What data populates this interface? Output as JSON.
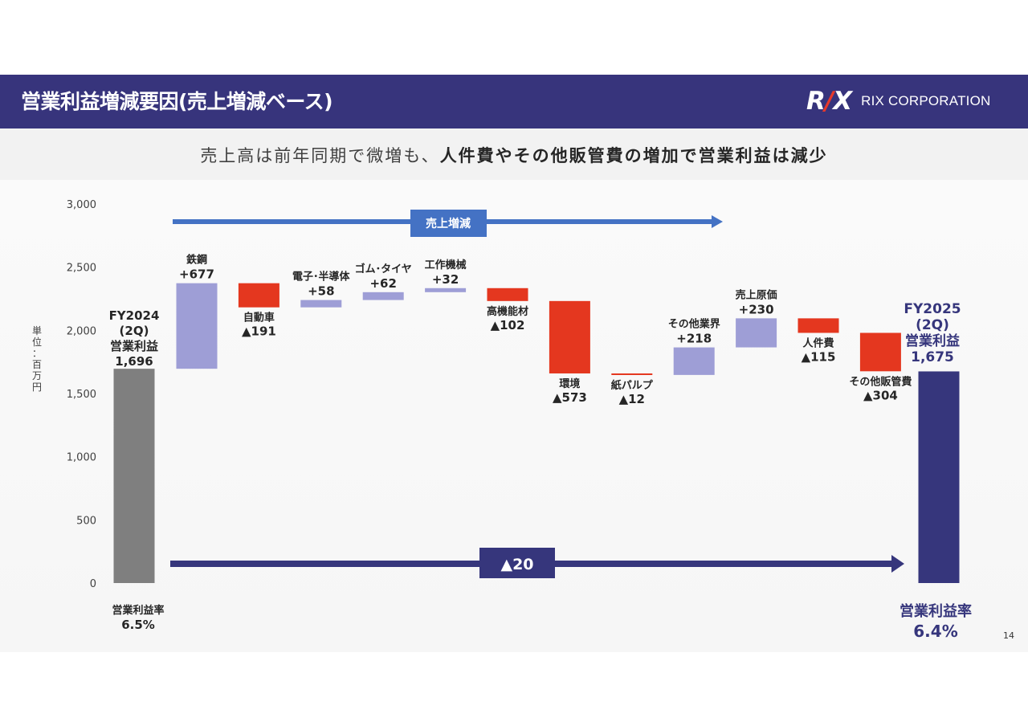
{
  "header": {
    "title": "営業利益増減要因(売上増減ベース)",
    "logo_mark": "RIX",
    "logo_text": "RIX CORPORATION"
  },
  "subtitle": {
    "normal": "売上高は前年同期で微増も、",
    "bold": "人件費やその他販管費の増加で営業利益は減少"
  },
  "unit_label": "単位：百万円",
  "page_number": "14",
  "colors": {
    "increase": "#9e9ed6",
    "decrease": "#e4371f",
    "start": "#7f7f7f",
    "end": "#36367c",
    "header": "#37347c",
    "sales_arrow": "#4472c4"
  },
  "chart_data": {
    "type": "waterfall",
    "ylim": [
      0,
      3000
    ],
    "yticks": [
      "0",
      "500",
      "1,000",
      "1,500",
      "2,000",
      "2,500",
      "3,000"
    ],
    "ytick_values": [
      0,
      500,
      1000,
      1500,
      2000,
      2500,
      3000
    ],
    "start": {
      "lines": [
        "FY2024",
        "(2Q)",
        "営業利益",
        "1,696"
      ],
      "value": 1696,
      "margin_label": "営業利益率",
      "margin_value": "6.5%"
    },
    "end": {
      "lines": [
        "FY2025",
        "(2Q)",
        "営業利益",
        "1,675"
      ],
      "value": 1675,
      "margin_label": "営業利益率",
      "margin_value": "6.4%"
    },
    "steps": [
      {
        "name": "鉄鋼",
        "label": "+677",
        "delta": 677
      },
      {
        "name": "自動車",
        "label": "▲191",
        "delta": -191
      },
      {
        "name": "電子･半導体",
        "label": "+58",
        "delta": 58
      },
      {
        "name": "ゴム･タイヤ",
        "label": "+62",
        "delta": 62
      },
      {
        "name": "工作機械",
        "label": "+32",
        "delta": 32
      },
      {
        "name": "高機能材",
        "label": "▲102",
        "delta": -102
      },
      {
        "name": "環境",
        "label": "▲573",
        "delta": -573
      },
      {
        "name": "紙パルプ",
        "label": "▲12",
        "delta": -12
      },
      {
        "name": "その他業界",
        "label": "+218",
        "delta": 218
      },
      {
        "name": "売上原価",
        "label": "+230",
        "delta": 230
      },
      {
        "name": "人件費",
        "label": "▲115",
        "delta": -115
      },
      {
        "name": "その他販管費",
        "label": "▲304",
        "delta": -304
      }
    ],
    "sales_arrow_label": "売上増減",
    "total_change_label": "▲20"
  }
}
